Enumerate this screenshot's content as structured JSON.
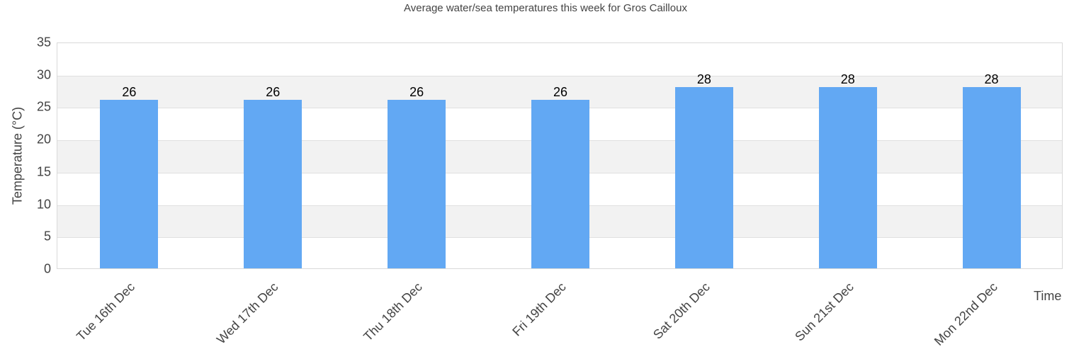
{
  "chart_data": {
    "type": "bar",
    "title": "Average water/sea temperatures this week for Gros Cailloux",
    "xlabel": "Time",
    "ylabel": "Temperature (°C)",
    "categories": [
      "Tue 16th Dec",
      "Wed 17th Dec",
      "Thu 18th Dec",
      "Fri 19th Dec",
      "Sat 20th Dec",
      "Sun 21st Dec",
      "Mon 22nd Dec"
    ],
    "values": [
      26,
      26,
      26,
      26,
      28,
      28,
      28
    ],
    "ylim": [
      0,
      35
    ],
    "yticks": [
      0,
      5,
      10,
      15,
      20,
      25,
      30,
      35
    ],
    "grid": true,
    "alternating_bands": true,
    "legend": "none",
    "data_labels": true,
    "colors": {
      "bar": "#62a8f3",
      "band": "#f2f2f2",
      "grid": "#e0e0e0"
    }
  }
}
